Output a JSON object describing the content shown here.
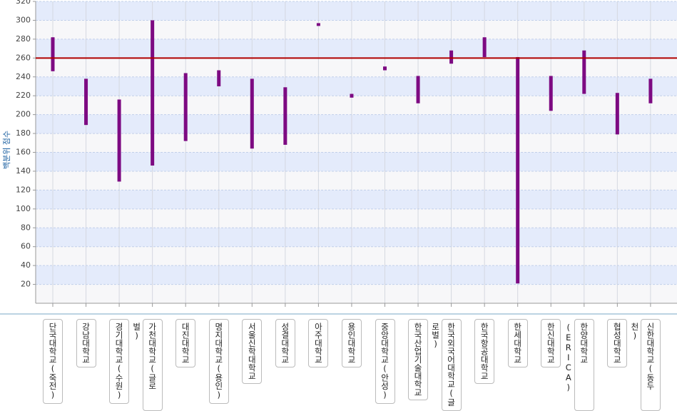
{
  "chart_data": {
    "type": "range-bar",
    "y_label": "백분위 점수",
    "categories": [
      "단국대학교(죽전)",
      "강남대학교",
      "경기대학교(수원)",
      "가천대학교(글로벌)",
      "대진대학교",
      "명지대학교(용인)",
      "서울신학대학교",
      "성결대학교",
      "아주대학교",
      "용인대학교",
      "중앙대학교(안성)",
      "한국산업기술대학교",
      "한국외국어대학교(글로벌)",
      "한국항공대학교",
      "한세대학교",
      "한신대학교",
      "한양대학교(ERICA)",
      "협성대학교",
      "신한대학교(동두천)"
    ],
    "high": [
      282,
      238,
      216,
      300,
      244,
      247,
      238,
      229,
      297,
      222,
      251,
      241,
      268,
      282,
      261,
      241,
      268,
      223,
      238
    ],
    "low": [
      246,
      189,
      129,
      146,
      172,
      230,
      164,
      168,
      294,
      218,
      247,
      212,
      254,
      261,
      21,
      204,
      222,
      179,
      212
    ],
    "color": "#7d0a82",
    "reference_line": 260,
    "reference_color": "#b00000",
    "ylim": [
      0,
      320
    ],
    "yticks": [
      20,
      40,
      60,
      80,
      100,
      120,
      140,
      160,
      180,
      200,
      220,
      240,
      260,
      280,
      300,
      320
    ],
    "grid": true
  }
}
